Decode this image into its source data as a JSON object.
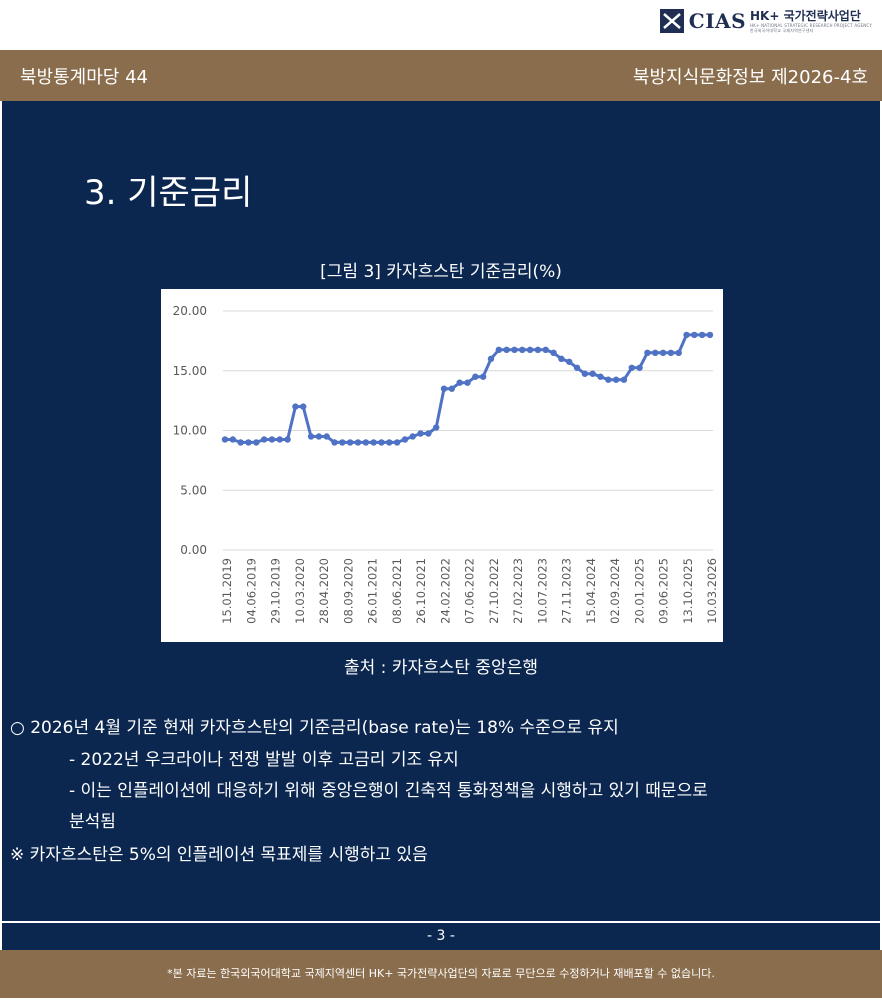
{
  "logo": {
    "brand": "CIAS",
    "title": "HK+ 국가전략사업단",
    "sub_en": "HK+ NATIONAL STRATEGIC RESEARCH PROJECT AGENCY",
    "sub_kr": "한국외국어대학교 국제지역연구센터"
  },
  "header": {
    "left": "북방통계마당 44",
    "right": "북방지식문화정보 제2026-4호"
  },
  "section_title": "3. 기준금리",
  "figure_caption": "[그림 3] 카자흐스탄 기준금리(%)",
  "source": "출처 : 카자흐스탄 중앙은행",
  "bullets": {
    "b1": "○ 2026년 4월 기준 현재 카자흐스탄의 기준금리(base rate)는 18% 수준으로 유지",
    "b2": "- 2022년 우크라이나 전쟁 발발 이후 고금리 기조 유지",
    "b3": "- 이는 인플레이션에 대응하기 위해 중앙은행이 긴축적 통화정책을 시행하고 있기 때문으로",
    "b4": "분석됨",
    "b5": "※ 카자흐스탄은 5%의 인플레이션 목표제를 시행하고 있음"
  },
  "page_number": "- 3 -",
  "footer": "*본 자료는 한국외국어대학교 국제지역센터 HK+ 국가전략사업단의 자료로 무단으로 수정하거나 재배포할 수 없습니다.",
  "colors": {
    "navy": "#0b2750",
    "brown": "#8a6d4c",
    "series": "#4f72c4"
  },
  "chart_data": {
    "type": "line",
    "title": "",
    "xlabel": "",
    "ylabel": "",
    "ylim": [
      0,
      20
    ],
    "yticks": [
      "0.00",
      "5.00",
      "10.00",
      "15.00",
      "20.00"
    ],
    "grid": true,
    "xtick_labels": [
      "15.01.2019",
      "04.06.2019",
      "29.10.2019",
      "10.03.2020",
      "28.04.2020",
      "08.09.2020",
      "26.01.2021",
      "08.06.2021",
      "26.10.2021",
      "24.02.2022",
      "07.06.2022",
      "27.10.2022",
      "27.02.2023",
      "10.07.2023",
      "27.11.2023",
      "15.04.2024",
      "02.09.2024",
      "20.01.2025",
      "09.06.2025",
      "13.10.2025",
      "10.03.2026"
    ],
    "series": [
      {
        "values": [
          9.25,
          9.25,
          9.0,
          9.0,
          9.0,
          9.25,
          9.25,
          9.25,
          9.25,
          12.0,
          12.0,
          9.5,
          9.5,
          9.5,
          9.0,
          9.0,
          9.0,
          9.0,
          9.0,
          9.0,
          9.0,
          9.0,
          9.0,
          9.25,
          9.5,
          9.75,
          9.75,
          10.25,
          13.5,
          13.5,
          14.0,
          14.0,
          14.5,
          14.5,
          16.0,
          16.75,
          16.75,
          16.75,
          16.75,
          16.75,
          16.75,
          16.75,
          16.5,
          16.0,
          15.75,
          15.25,
          14.75,
          14.75,
          14.5,
          14.25,
          14.25,
          14.25,
          15.25,
          15.25,
          16.5,
          16.5,
          16.5,
          16.5,
          16.5,
          18.0,
          18.0,
          18.0,
          18.0
        ]
      }
    ]
  }
}
